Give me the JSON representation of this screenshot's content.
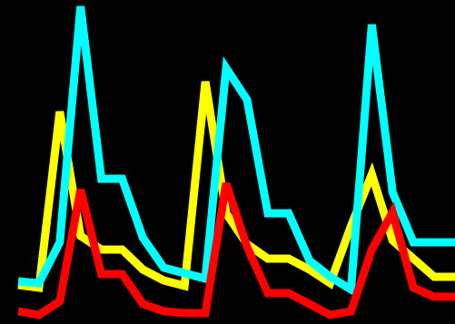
{
  "chart_data": {
    "type": "line",
    "x": [
      0,
      1,
      2,
      3,
      4,
      5,
      6,
      7,
      8,
      9,
      10,
      11,
      12,
      13,
      14,
      15,
      16,
      17,
      18,
      19,
      20,
      21
    ],
    "xlim": [
      0,
      21
    ],
    "ylim": [
      0,
      357
    ],
    "grid": false,
    "legend": "none",
    "title": "",
    "xlabel": "",
    "ylabel": "",
    "background": "#000000",
    "series": [
      {
        "color": "#FFFF00",
        "values": [
          43,
          40,
          234,
          97,
          82,
          82,
          60,
          48,
          42,
          267,
          122,
          88,
          72,
          72,
          60,
          45,
          108,
          165,
          92,
          72,
          52,
          52
        ]
      },
      {
        "color": "#00FFFF",
        "values": [
          47,
          45,
          90,
          350,
          160,
          160,
          95,
          62,
          56,
          50,
          282,
          247,
          122,
          122,
          70,
          52,
          38,
          330,
          145,
          90,
          90,
          90
        ]
      },
      {
        "color": "#FF0000",
        "values": [
          14,
          10,
          25,
          148,
          55,
          55,
          22,
          14,
          12,
          12,
          155,
          85,
          34,
          34,
          22,
          10,
          14,
          82,
          123,
          40,
          30,
          30
        ]
      }
    ]
  }
}
